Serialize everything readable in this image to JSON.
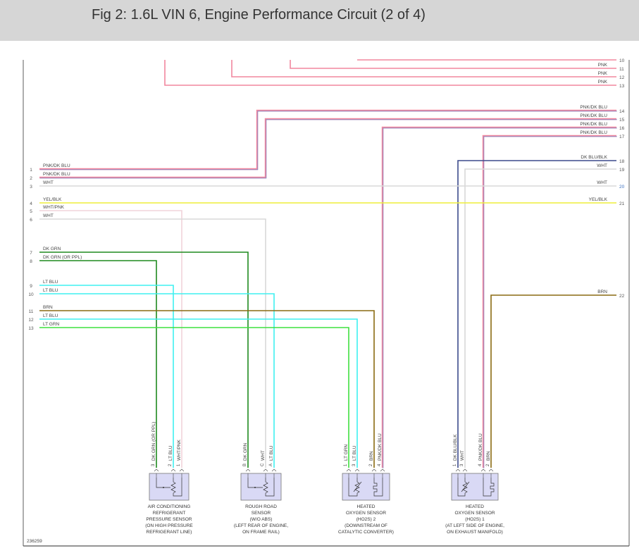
{
  "header": {
    "title": "Fig 2: 1.6L VIN 6, Engine Performance Circuit (2 of 4)"
  },
  "figure_id": "236259",
  "colors": {
    "pnk": "#f2879e",
    "dkblu_stripe": "#7f88c6",
    "wht": "#d9d9d9",
    "whtpnk": "#f1d3da",
    "yel": "#eeee3a",
    "dkgrn": "#1f8a1f",
    "ltblu": "#3ff0f0",
    "brn": "#8a6a12",
    "ltgrn": "#3fe03f",
    "dkblublk": "#3b4a8c",
    "sensor_fill": "#d9d9f5",
    "pin_number": "#555555"
  },
  "left_pins": [
    {
      "num": "1",
      "label": "PNK/DK BLU"
    },
    {
      "num": "2",
      "label": "PNK/DK BLU"
    },
    {
      "num": "3",
      "label": "WHT"
    },
    {
      "num": "4",
      "label": "YEL/BLK"
    },
    {
      "num": "5",
      "label": "WHT/PNK"
    },
    {
      "num": "6",
      "label": "WHT"
    },
    {
      "num": "7",
      "label": "DK GRN"
    },
    {
      "num": "8",
      "label": "DK GRN    (OR PPL)"
    },
    {
      "num": "9",
      "label": "LT BLU"
    },
    {
      "num": "10",
      "label": "LT BLU"
    },
    {
      "num": "11",
      "label": "BRN"
    },
    {
      "num": "12",
      "label": "LT BLU"
    },
    {
      "num": "13",
      "label": "LT GRN"
    }
  ],
  "right_pins": [
    {
      "num": "10",
      "label": ""
    },
    {
      "num": "11",
      "label": "PNK"
    },
    {
      "num": "12",
      "label": "PNK"
    },
    {
      "num": "13",
      "label": "PNK"
    },
    {
      "num": "14",
      "label": "PNK/DK BLU"
    },
    {
      "num": "15",
      "label": "PNK/DK BLU"
    },
    {
      "num": "16",
      "label": "PNK/DK BLU"
    },
    {
      "num": "17",
      "label": "PNK/DK BLU"
    },
    {
      "num": "18",
      "label": "DK BLU/BLK"
    },
    {
      "num": "19",
      "label": "WHT"
    },
    {
      "num": "20",
      "label": "WHT"
    },
    {
      "num": "21",
      "label": "YEL/BLK"
    },
    {
      "num": "22",
      "label": "BRN"
    }
  ],
  "sensors": [
    {
      "caption": [
        "AIR CONDITIONING",
        "REFRIGERANT",
        "PRESSURE SENSOR",
        "(ON HIGH PRESSURE",
        "REFRIGERANT LINE)"
      ],
      "pins": [
        {
          "num": "3",
          "label": "DK GRN    (OR PPL)"
        },
        {
          "num": "2",
          "label": "LT BLU"
        },
        {
          "num": "1",
          "label": "WHT/PNK"
        }
      ]
    },
    {
      "caption": [
        "ROUGH ROAD",
        "SENSOR",
        "(W/O ABS)",
        "(LEFT REAR OF ENGINE,",
        "ON FRAME RAIL)"
      ],
      "pins": [
        {
          "num": "B",
          "label": "DK GRN"
        },
        {
          "num": "C",
          "label": "WHT"
        },
        {
          "num": "A",
          "label": "LT BLU"
        }
      ]
    },
    {
      "caption": [
        "HEATED",
        "OXYGEN SENSOR",
        "(HO2S) 2",
        "(DOWNSTREAM OF",
        "CATALYTIC CONVERTER)"
      ],
      "pins": [
        {
          "num": "1",
          "label": "LT GRN"
        },
        {
          "num": "3",
          "label": "LT BLU"
        },
        {
          "num": "2",
          "label": "BRN"
        },
        {
          "num": "4",
          "label": "PNK/DK BLU"
        }
      ]
    },
    {
      "caption": [
        "HEATED",
        "OXYGEN SENSOR",
        "(HO2S) 1",
        "(AT LEFT SIDE OF ENGINE,",
        "ON EXHAUST MANIFOLD)"
      ],
      "pins": [
        {
          "num": "1",
          "label": "DK BLU/BLK"
        },
        {
          "num": "3",
          "label": "WHT"
        },
        {
          "num": "4",
          "label": "PNK/DK BLU"
        },
        {
          "num": "2",
          "label": "BRN"
        }
      ]
    }
  ]
}
